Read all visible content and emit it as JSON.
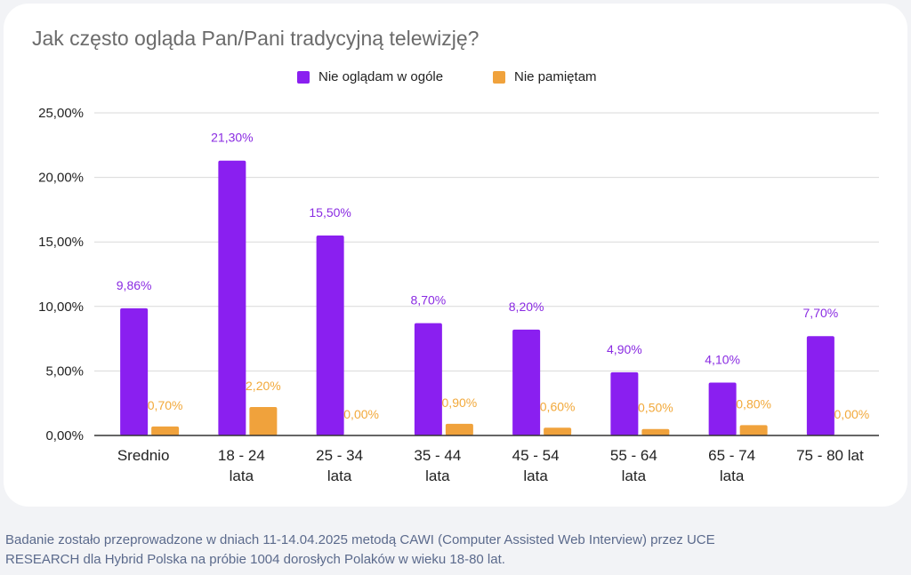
{
  "footnote_line1": "Badanie zostało przeprowadzone w dniach 11-14.04.2025 metodą CAWI (Computer Assisted Web Interview) przez UCE",
  "footnote_line2": "RESEARCH dla Hybrid Polska na próbie 1004 dorosłych Polaków w wieku 18-80 lat.",
  "colors": {
    "series1": "#8a1ff0",
    "series2": "#f0a23c",
    "series1_label": "#8a2be2",
    "series2_label": "#f2a93b",
    "grid": "#d9d9d9",
    "axis": "#333333"
  },
  "chart_data": {
    "type": "bar",
    "title": "Jak często ogląda Pan/Pani tradycyjną telewizję?",
    "categories": [
      [
        "Srednio"
      ],
      [
        "18 - 24",
        "lata"
      ],
      [
        "25 - 34",
        "lata"
      ],
      [
        "35 - 44",
        "lata"
      ],
      [
        "45 - 54",
        "lata"
      ],
      [
        "55 - 64",
        "lata"
      ],
      [
        "65 - 74",
        "lata"
      ],
      [
        "75 - 80 lat"
      ]
    ],
    "series": [
      {
        "name": "Nie oglądam w ogóle",
        "values": [
          9.86,
          21.3,
          15.5,
          8.7,
          8.2,
          4.9,
          4.1,
          7.7
        ],
        "labels": [
          "9,86%",
          "21,30%",
          "15,50%",
          "8,70%",
          "8,20%",
          "4,90%",
          "4,10%",
          "7,70%"
        ]
      },
      {
        "name": "Nie pamiętam",
        "values": [
          0.7,
          2.2,
          0.0,
          0.9,
          0.6,
          0.5,
          0.8,
          0.0
        ],
        "labels": [
          "0,70%",
          "2,20%",
          "0,00%",
          "0,90%",
          "0,60%",
          "0,50%",
          "0,80%",
          "0,00%"
        ]
      }
    ],
    "yticks": [
      0,
      5,
      10,
      15,
      20,
      25
    ],
    "ytick_labels": [
      "0,00%",
      "5,00%",
      "10,00%",
      "15,00%",
      "20,00%",
      "25,00%"
    ],
    "ylim": [
      0,
      25
    ],
    "grid": true,
    "legend_position": "top-center"
  }
}
